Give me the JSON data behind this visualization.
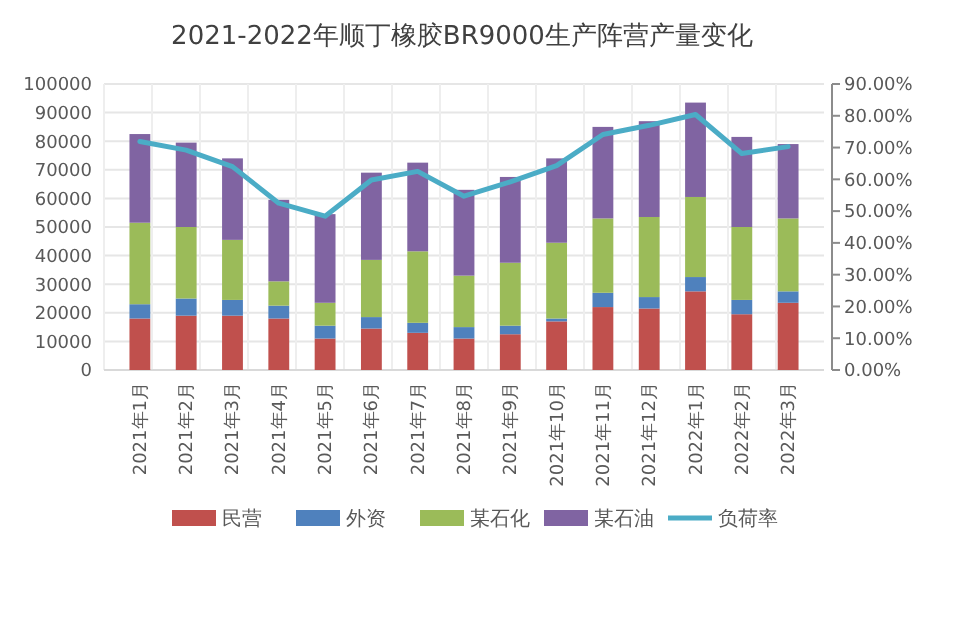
{
  "chart_data": {
    "type": "bar",
    "title": "2021-2022年顺丁橡胶BR9000生产阵营产量变化",
    "stacked": true,
    "grid": true,
    "legend": "bottom",
    "categories": [
      "2021年1月",
      "2021年2月",
      "2021年3月",
      "2021年4月",
      "2021年5月",
      "2021年6月",
      "2021年7月",
      "2021年8月",
      "2021年9月",
      "2021年10月",
      "2021年11月",
      "2021年12月",
      "2022年1月",
      "2022年2月",
      "2022年3月"
    ],
    "series": [
      {
        "name": "民营",
        "color": "#c0504d",
        "values": [
          18000,
          19000,
          19000,
          18000,
          11000,
          14500,
          13000,
          11000,
          12500,
          17000,
          22000,
          21500,
          27500,
          19500,
          23500
        ]
      },
      {
        "name": "外资",
        "color": "#4f81bd",
        "values": [
          5000,
          6000,
          5500,
          4500,
          4500,
          4000,
          3500,
          4000,
          3000,
          1000,
          5000,
          4000,
          5000,
          5000,
          4000
        ]
      },
      {
        "name": "某石化",
        "color": "#9bbb59",
        "values": [
          28500,
          25000,
          21000,
          8500,
          8000,
          20000,
          25000,
          18000,
          22000,
          26500,
          26000,
          28000,
          28000,
          25500,
          25500
        ]
      },
      {
        "name": "某石油",
        "color": "#8064a2",
        "values": [
          31000,
          29500,
          28500,
          28500,
          31000,
          30500,
          31000,
          30000,
          30000,
          29500,
          32000,
          33500,
          33000,
          31500,
          26000
        ]
      },
      {
        "name": "负荷率",
        "type": "line",
        "axis": "y2",
        "color": "#4bacc6",
        "values": [
          71.9,
          69.2,
          64,
          52.5,
          48.4,
          59.8,
          62.5,
          54.7,
          59.2,
          64.3,
          74.1,
          77,
          80.4,
          68.1,
          70.3
        ]
      }
    ],
    "ylim": [
      0,
      100000
    ],
    "yticks": [
      0,
      10000,
      20000,
      30000,
      40000,
      50000,
      60000,
      70000,
      80000,
      90000,
      100000
    ],
    "y2lim": [
      0,
      90
    ],
    "y2ticks": [
      {
        "value": 0,
        "label": "0.00%"
      },
      {
        "value": 10,
        "label": "10.00%"
      },
      {
        "value": 20,
        "label": "20.00%"
      },
      {
        "value": 30,
        "label": "30.00%"
      },
      {
        "value": 40,
        "label": "40.00%"
      },
      {
        "value": 50,
        "label": "50.00%"
      },
      {
        "value": 60,
        "label": "60.00%"
      },
      {
        "value": 70,
        "label": "70.00%"
      },
      {
        "value": 80,
        "label": "80.00%"
      },
      {
        "value": 90,
        "label": "90.00%"
      }
    ]
  }
}
